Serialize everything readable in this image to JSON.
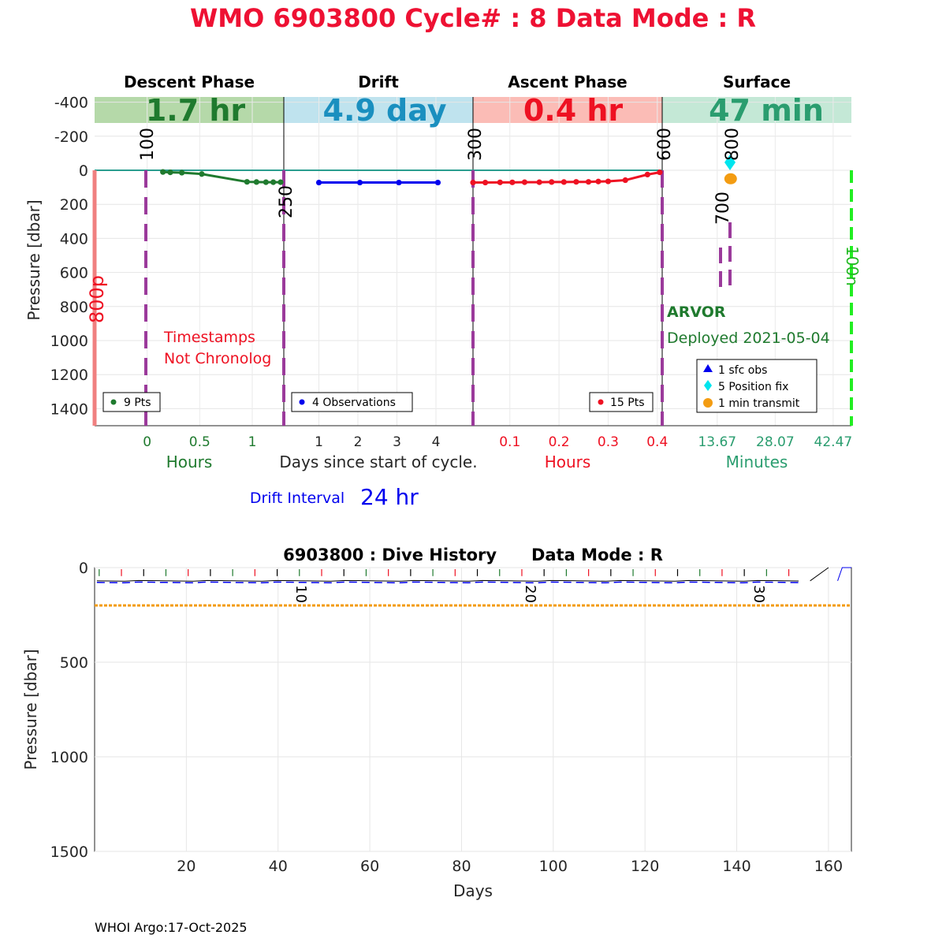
{
  "header": {
    "title": "WMO 6903800   Cycle# : 8   Data Mode : R",
    "title_color": "#ee1133"
  },
  "colors": {
    "descent": "#1f7a2e",
    "drift": "#0000ee",
    "ascent": "#ee1122",
    "surface": "#2a9d6f",
    "purple": "#9b3a9b",
    "orange": "#f39c12",
    "cyan": "#00e5ee",
    "green_dashed": "#22ee22"
  },
  "phases": [
    {
      "name": "Descent Phase",
      "duration": "1.7 hr",
      "band": "#b5d9a9",
      "text": "#1f7a2e"
    },
    {
      "name": "Drift",
      "duration": "4.9 day",
      "band": "#bfe3ee",
      "text": "#1a8fbf"
    },
    {
      "name": "Ascent Phase",
      "duration": "0.4 hr",
      "band": "#fbbcb6",
      "text": "#ee1122"
    },
    {
      "name": "Surface",
      "duration": "47 min",
      "band": "#c4e8d6",
      "text": "#2a9d6f"
    }
  ],
  "chart_data": [
    {
      "type": "line",
      "panel": "cycle",
      "ylabel": "Pressure [dbar]",
      "yticks": [
        "-400",
        "-200",
        "0",
        "200",
        "400",
        "600",
        "800",
        "1000",
        "1200",
        "1400"
      ],
      "ylim": [
        1500,
        -500
      ],
      "panels": [
        {
          "name": "Descent Phase",
          "xlabel": "Hours",
          "xticks": [
            "0",
            "0.5",
            "1"
          ],
          "xlim": [
            -0.5,
            1.3
          ],
          "series": [
            {
              "x": [
                0.15,
                0.22,
                0.33,
                0.52,
                0.95,
                1.04,
                1.13,
                1.2,
                1.27
              ],
              "y": [
                10,
                12,
                14,
                22,
                68,
                69,
                70,
                70,
                70
              ]
            }
          ],
          "legend": "9 Pts",
          "annotations": [
            {
              "text": "100",
              "x": 0
            },
            {
              "text": "250",
              "x": 1.3
            }
          ],
          "note": [
            "Timestamps",
            "Not Chronolog"
          ]
        },
        {
          "name": "Drift",
          "xlabel": "Days since start of cycle.",
          "xticks": [
            "1",
            "2",
            "3",
            "4"
          ],
          "xlim": [
            0.1,
            4.95
          ],
          "series": [
            {
              "x": [
                1.0,
                2.05,
                3.05,
                4.05
              ],
              "y": [
                72,
                72,
                72,
                72
              ]
            }
          ],
          "legend": "4 Observations"
        },
        {
          "name": "Ascent Phase",
          "xlabel": "Hours",
          "xticks": [
            "0.1",
            "0.2",
            "0.3",
            "0.4"
          ],
          "xlim": [
            0.025,
            0.41
          ],
          "series": [
            {
              "x": [
                0.025,
                0.05,
                0.08,
                0.105,
                0.13,
                0.16,
                0.185,
                0.21,
                0.235,
                0.26,
                0.28,
                0.3,
                0.335,
                0.38,
                0.405
              ],
              "y": [
                72,
                72,
                71,
                71,
                70,
                70,
                69,
                69,
                68,
                68,
                66,
                65,
                58,
                25,
                12
              ]
            }
          ],
          "legend": "15 Pts",
          "annotations": [
            {
              "text": "300",
              "x": 0.025
            },
            {
              "text": "600",
              "x": 0.41
            }
          ]
        },
        {
          "name": "Surface",
          "xlabel": "Minutes",
          "xticks": [
            "13.67",
            "28.07",
            "42.47"
          ],
          "xlim": [
            0,
            47
          ],
          "position_fix": {
            "x": 17,
            "y": [
              55,
              50,
              48,
              52,
              50
            ]
          },
          "transmit": {
            "x": 17,
            "y": 50
          },
          "legend": [
            "1 sfc obs",
            "5 Position fix",
            "1 min transmit"
          ],
          "annotations": [
            {
              "text": "800",
              "x": 17
            },
            {
              "text": "700",
              "x": 15
            },
            {
              "text": "100n",
              "x": 47
            }
          ]
        }
      ],
      "side_label": "800p"
    },
    {
      "type": "line",
      "panel": "history",
      "title": "6903800 : Dive History      Data Mode : R",
      "xlabel": "Days",
      "ylabel": "Pressure [dbar]",
      "xlim": [
        0,
        165
      ],
      "ylim": [
        0,
        1500
      ],
      "xticks": [
        "20",
        "40",
        "60",
        "80",
        "100",
        "120",
        "140",
        "160"
      ],
      "yticks": [
        "0",
        "500",
        "1000",
        "1500"
      ],
      "cycle_labels": [
        "10",
        "20",
        "30"
      ],
      "reference_depth": 200,
      "drift_depth": 70
    }
  ],
  "float_info": {
    "model": "ARVOR",
    "deployed": "Deployed 2021-05-04",
    "drift_interval_label": "Drift Interval",
    "drift_interval_value": "24 hr"
  },
  "footer": {
    "credit": "WHOI Argo:17-Oct-2025"
  }
}
